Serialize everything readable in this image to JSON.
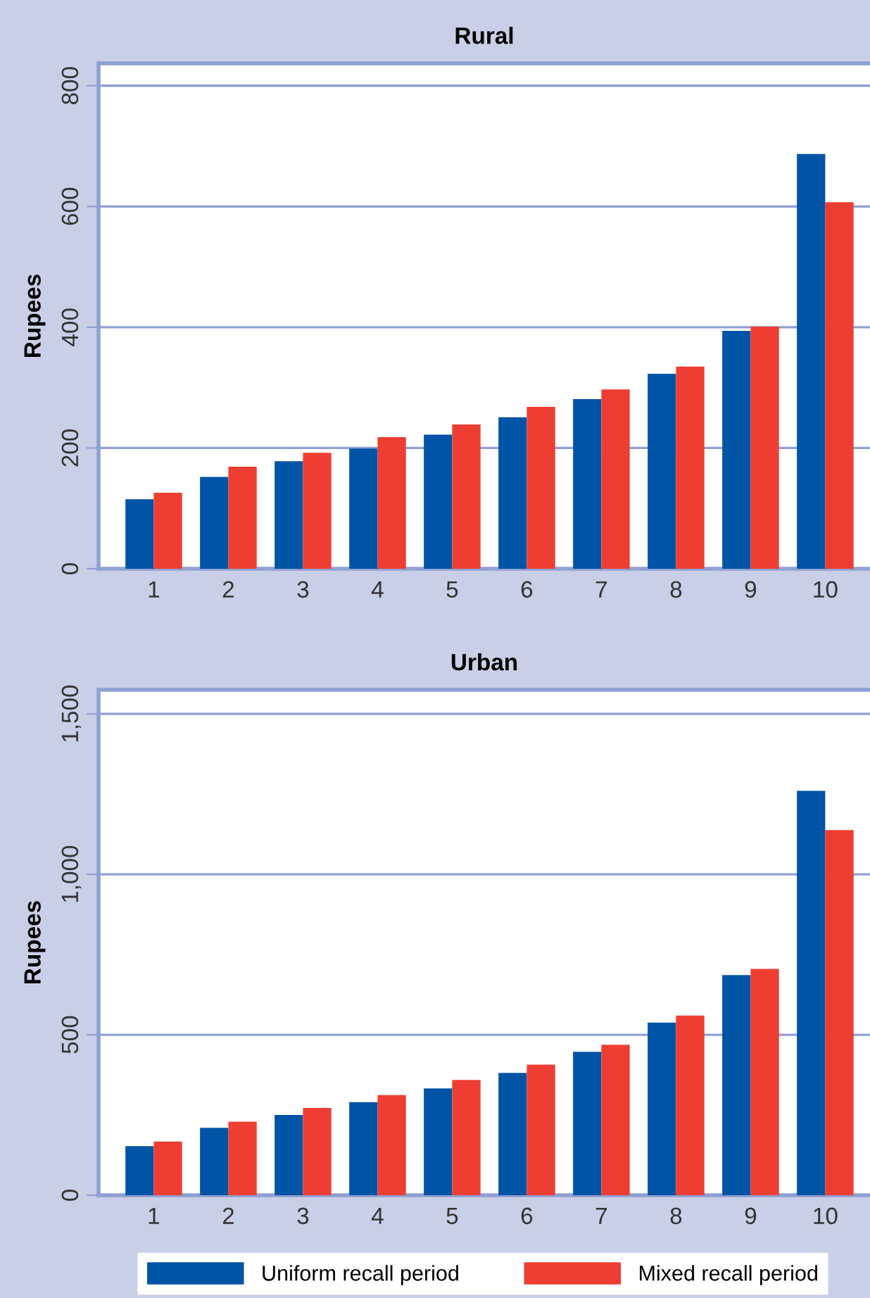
{
  "chart_data": [
    {
      "type": "bar",
      "title": "Rural",
      "ylabel": "Rupees",
      "categories": [
        "1",
        "2",
        "3",
        "4",
        "5",
        "6",
        "7",
        "8",
        "9",
        "10"
      ],
      "series": [
        {
          "name": "Uniform recall period",
          "color": "#0054a6",
          "values": [
            115,
            152,
            178,
            199,
            222,
            251,
            281,
            323,
            394,
            687
          ]
        },
        {
          "name": "Mixed recall period",
          "color": "#ee3e33",
          "values": [
            126,
            169,
            192,
            218,
            239,
            268,
            297,
            335,
            401,
            607
          ]
        }
      ],
      "ylim": [
        0,
        837
      ],
      "yticks": [
        0,
        200,
        400,
        600,
        800
      ],
      "grid": "y",
      "legend": "bottom"
    },
    {
      "type": "bar",
      "title": "Urban",
      "ylabel": "Rupees",
      "categories": [
        "1",
        "2",
        "3",
        "4",
        "5",
        "6",
        "7",
        "8",
        "9",
        "10"
      ],
      "series": [
        {
          "color": "#0054a6",
          "values": [
            153,
            210,
            250,
            290,
            333,
            381,
            447,
            538,
            686,
            1260
          ]
        },
        {
          "color": "#ee3e33",
          "values": [
            167,
            229,
            272,
            312,
            359,
            407,
            469,
            560,
            705,
            1138
          ]
        }
      ],
      "ylim": [
        0,
        1575
      ],
      "yticks": [
        0,
        {
          "value": 500,
          "label": "500"
        },
        {
          "value": 1000,
          "label": "1,000"
        },
        {
          "value": 1500,
          "label": "1,500"
        }
      ],
      "grid": "y"
    }
  ]
}
